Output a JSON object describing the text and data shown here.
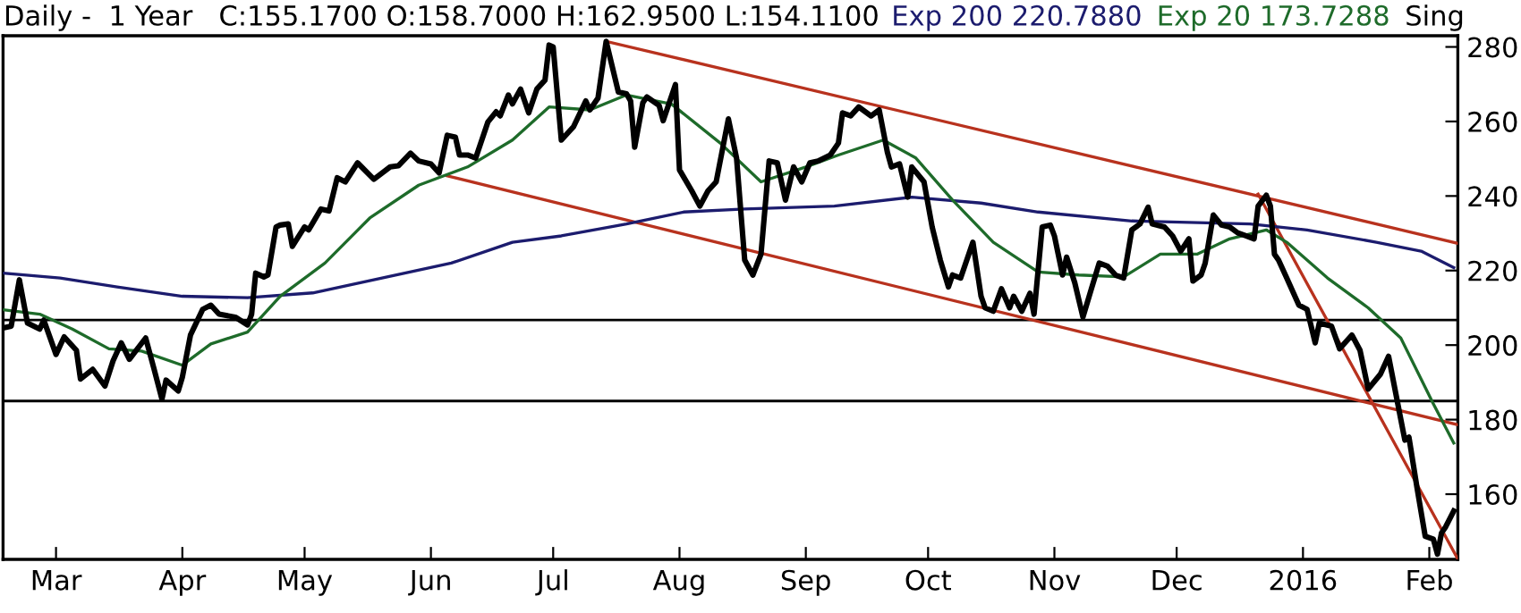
{
  "chart_data": {
    "type": "line",
    "title": "Daily -  1 Year   C:155.1700 O:158.7000 H:162.9500 L:154.1100",
    "annotations": [
      "Sing"
    ],
    "legend": "top",
    "marker": "none",
    "grid": false,
    "xlim": [
      "2015-02-16",
      "2016-02-08"
    ],
    "ylim": [
      142.5,
      283
    ],
    "xticks": [
      {
        "value": "2015-03-01",
        "label": "Mar"
      },
      {
        "value": "2015-04-01",
        "label": "Apr"
      },
      {
        "value": "2015-05-01",
        "label": "May"
      },
      {
        "value": "2015-06-01",
        "label": "Jun"
      },
      {
        "value": "2015-07-01",
        "label": "Jul"
      },
      {
        "value": "2015-08-01",
        "label": "Aug"
      },
      {
        "value": "2015-09-01",
        "label": "Sep"
      },
      {
        "value": "2015-10-01",
        "label": "Oct"
      },
      {
        "value": "2015-11-01",
        "label": "Nov"
      },
      {
        "value": "2015-12-01",
        "label": "Dec"
      },
      {
        "value": "2016-01-01",
        "label": "2016"
      },
      {
        "value": "2016-02-01",
        "label": "Feb"
      }
    ],
    "yticks": [
      160,
      180,
      200,
      220,
      240,
      260,
      280
    ],
    "ref_lines": [
      {
        "axis": "y",
        "value": 206.7,
        "color": "#000000"
      },
      {
        "axis": "y",
        "value": 185,
        "color": "#000000"
      }
    ],
    "series": [
      {
        "color": "#b8321e",
        "x": [
          "2015-07-14",
          "2016-02-08"
        ],
        "values": [
          281.5,
          227.3
        ]
      },
      {
        "color": "#b8321e",
        "x": [
          "2015-06-05",
          "2016-02-08"
        ],
        "values": [
          245.4,
          178.6
        ]
      },
      {
        "color": "#b8321e",
        "x": [
          "2015-12-21",
          "2016-02-08"
        ],
        "values": [
          240.5,
          142.6
        ]
      },
      {
        "name": "Exp 200 220.7880",
        "color": "#1c1c6e",
        "x": [
          "2015-02-16",
          "2015-03-02",
          "2015-03-16",
          "2015-04-01",
          "2015-04-17",
          "2015-05-03",
          "2015-05-20",
          "2015-06-06",
          "2015-06-21",
          "2015-07-03",
          "2015-07-19",
          "2015-08-02",
          "2015-08-17",
          "2015-09-08",
          "2015-09-27",
          "2015-10-14",
          "2015-10-28",
          "2015-11-20",
          "2015-12-19",
          "2016-01-02",
          "2016-01-19",
          "2016-01-30",
          "2016-02-07"
        ],
        "values": [
          219.3,
          218,
          215.6,
          213.1,
          212.7,
          214,
          218,
          222,
          227.6,
          229.3,
          232.5,
          235.7,
          236.5,
          237.3,
          239.7,
          238.1,
          235.7,
          233.3,
          232.5,
          230.9,
          227.6,
          225.2,
          220.8
        ]
      },
      {
        "name": "Exp 20 173.7288",
        "color": "#1e6b2a",
        "x": [
          "2015-02-16",
          "2015-02-25",
          "2015-03-05",
          "2015-03-14",
          "2015-03-22",
          "2015-04-01",
          "2015-04-08",
          "2015-04-17",
          "2015-04-25",
          "2015-05-06",
          "2015-05-17",
          "2015-05-29",
          "2015-06-10",
          "2015-06-21",
          "2015-06-30",
          "2015-07-10",
          "2015-07-19",
          "2015-07-30",
          "2015-08-11",
          "2015-08-21",
          "2015-09-01",
          "2015-09-09",
          "2015-09-20",
          "2015-09-28",
          "2015-10-07",
          "2015-10-17",
          "2015-10-28",
          "2015-11-07",
          "2015-11-18",
          "2015-11-27",
          "2015-12-06",
          "2015-12-14",
          "2015-12-23",
          "2015-12-28",
          "2016-01-07",
          "2016-01-17",
          "2016-01-25",
          "2016-02-02",
          "2016-02-07"
        ],
        "values": [
          209.5,
          208.3,
          204.3,
          199,
          198.4,
          194.6,
          200.3,
          203.5,
          213.1,
          222,
          234.1,
          242.9,
          247.8,
          255,
          263.9,
          263.1,
          267.1,
          264.7,
          254.2,
          243.8,
          247.8,
          251,
          255,
          250.2,
          238.9,
          227.6,
          219.6,
          218.8,
          218.3,
          224.4,
          224.4,
          228.5,
          230.9,
          227.6,
          218,
          210,
          201.9,
          184.2,
          173.7
        ]
      },
      {
        "color": "#000000",
        "x": [
          "2015-02-16",
          "2015-02-18",
          "2015-02-20",
          "2015-02-22",
          "2015-02-25",
          "2015-02-26",
          "2015-03-01",
          "2015-03-03",
          "2015-03-06",
          "2015-03-07",
          "2015-03-10",
          "2015-03-13",
          "2015-03-15",
          "2015-03-17",
          "2015-03-19",
          "2015-03-23",
          "2015-03-25",
          "2015-03-27",
          "2015-03-28",
          "2015-03-31",
          "2015-04-01",
          "2015-04-03",
          "2015-04-06",
          "2015-04-08",
          "2015-04-10",
          "2015-04-14",
          "2015-04-17",
          "2015-04-18",
          "2015-04-19",
          "2015-04-21",
          "2015-04-22",
          "2015-04-24",
          "2015-04-25",
          "2015-04-27",
          "2015-04-28",
          "2015-05-01",
          "2015-05-02",
          "2015-05-05",
          "2015-05-07",
          "2015-05-09",
          "2015-05-11",
          "2015-05-14",
          "2015-05-18",
          "2015-05-22",
          "2015-05-24",
          "2015-05-27",
          "2015-05-29",
          "2015-06-01",
          "2015-06-03",
          "2015-06-05",
          "2015-06-07",
          "2015-06-08",
          "2015-06-10",
          "2015-06-12",
          "2015-06-15",
          "2015-06-17",
          "2015-06-18",
          "2015-06-20",
          "2015-06-21",
          "2015-06-23",
          "2015-06-25",
          "2015-06-27",
          "2015-06-29",
          "2015-06-30",
          "2015-07-01",
          "2015-07-03",
          "2015-07-06",
          "2015-07-09",
          "2015-07-10",
          "2015-07-12",
          "2015-07-14",
          "2015-07-17",
          "2015-07-19",
          "2015-07-20",
          "2015-07-21",
          "2015-07-23",
          "2015-07-24",
          "2015-07-27",
          "2015-07-28",
          "2015-07-31",
          "2015-08-01",
          "2015-08-04",
          "2015-08-06",
          "2015-08-08",
          "2015-08-10",
          "2015-08-13",
          "2015-08-15",
          "2015-08-17",
          "2015-08-19",
          "2015-08-21",
          "2015-08-23",
          "2015-08-25",
          "2015-08-27",
          "2015-08-29",
          "2015-08-31",
          "2015-09-02",
          "2015-09-04",
          "2015-09-07",
          "2015-09-09",
          "2015-09-10",
          "2015-09-12",
          "2015-09-14",
          "2015-09-17",
          "2015-09-19",
          "2015-09-21",
          "2015-09-22",
          "2015-09-24",
          "2015-09-26",
          "2015-09-27",
          "2015-09-30",
          "2015-10-02",
          "2015-10-04",
          "2015-10-06",
          "2015-10-07",
          "2015-10-09",
          "2015-10-12",
          "2015-10-14",
          "2015-10-15",
          "2015-10-17",
          "2015-10-19",
          "2015-10-21",
          "2015-10-22",
          "2015-10-24",
          "2015-10-26",
          "2015-10-27",
          "2015-10-29",
          "2015-10-31",
          "2015-11-01",
          "2015-11-03",
          "2015-11-04",
          "2015-11-06",
          "2015-11-08",
          "2015-11-10",
          "2015-11-12",
          "2015-11-14",
          "2015-11-16",
          "2015-11-18",
          "2015-11-20",
          "2015-11-22",
          "2015-11-24",
          "2015-11-25",
          "2015-11-28",
          "2015-11-30",
          "2015-12-02",
          "2015-12-04",
          "2015-12-05",
          "2015-12-07",
          "2015-12-08",
          "2015-12-10",
          "2015-12-12",
          "2015-12-14",
          "2015-12-16",
          "2015-12-18",
          "2015-12-20",
          "2015-12-21",
          "2015-12-23",
          "2015-12-24",
          "2015-12-25",
          "2015-12-26",
          "2015-12-28",
          "2015-12-31",
          "2016-01-02",
          "2016-01-04",
          "2016-01-05",
          "2016-01-08",
          "2016-01-10",
          "2016-01-13",
          "2016-01-15",
          "2016-01-17",
          "2016-01-20",
          "2016-01-22",
          "2016-01-25",
          "2016-01-26",
          "2016-01-27",
          "2016-01-29",
          "2016-01-31",
          "2016-02-02",
          "2016-02-03",
          "2016-02-04",
          "2016-02-05",
          "2016-02-07"
        ],
        "values": [
          204.6,
          205.1,
          217.5,
          205.9,
          204.3,
          206.7,
          197.5,
          202.2,
          198.6,
          190.9,
          193.5,
          189,
          195.8,
          200.6,
          196.2,
          201.9,
          193.8,
          185.5,
          190.6,
          187.7,
          191.4,
          202.7,
          209.6,
          210.7,
          208.3,
          207.5,
          205.4,
          208.3,
          219.3,
          218.3,
          218.8,
          231.7,
          232.2,
          232.5,
          226.5,
          231.7,
          230.9,
          236.5,
          236,
          244.9,
          243.8,
          248.9,
          244.5,
          247.8,
          248.1,
          251.5,
          249.4,
          248.6,
          246.2,
          256.3,
          255.8,
          251,
          251,
          250.2,
          259.9,
          262.6,
          261.5,
          267.1,
          264.7,
          268.7,
          262.3,
          268.7,
          271.1,
          280.5,
          280,
          255,
          258.6,
          265.5,
          263.1,
          266.3,
          281.5,
          267.9,
          267.4,
          265.5,
          253.1,
          265,
          266.6,
          264.3,
          260.2,
          269.9,
          247,
          241.4,
          237.3,
          241.4,
          243.8,
          260.7,
          250.2,
          222.8,
          218.8,
          224.4,
          249.4,
          248.9,
          238.9,
          247.8,
          243.8,
          248.9,
          249.4,
          251,
          254.2,
          262.3,
          261.5,
          263.9,
          261.5,
          263.1,
          251.8,
          247.8,
          248.6,
          239.7,
          247.8,
          243.8,
          231.7,
          222.8,
          215.6,
          218.8,
          218,
          227.6,
          213.1,
          210,
          209.1,
          215.1,
          210,
          213.1,
          209.1,
          213.9,
          208.3,
          231.7,
          232.2,
          229.3,
          218.8,
          223.6,
          216.7,
          207.5,
          214.8,
          222,
          221.2,
          218.8,
          218,
          230.9,
          232.5,
          237,
          232.5,
          231.7,
          229.3,
          225.2,
          228.5,
          217.2,
          218.8,
          222,
          234.9,
          232.2,
          231.7,
          230.1,
          229.3,
          228.5,
          237.3,
          240.2,
          237.3,
          224.4,
          222.8,
          218,
          210.7,
          209.6,
          200.6,
          205.9,
          205.1,
          199,
          202.7,
          198.6,
          188.2,
          192.2,
          197,
          180.1,
          174.5,
          175.3,
          161.6,
          148.7,
          147.9,
          143.9,
          149.6,
          151.2,
          155.5
        ]
      }
    ]
  }
}
